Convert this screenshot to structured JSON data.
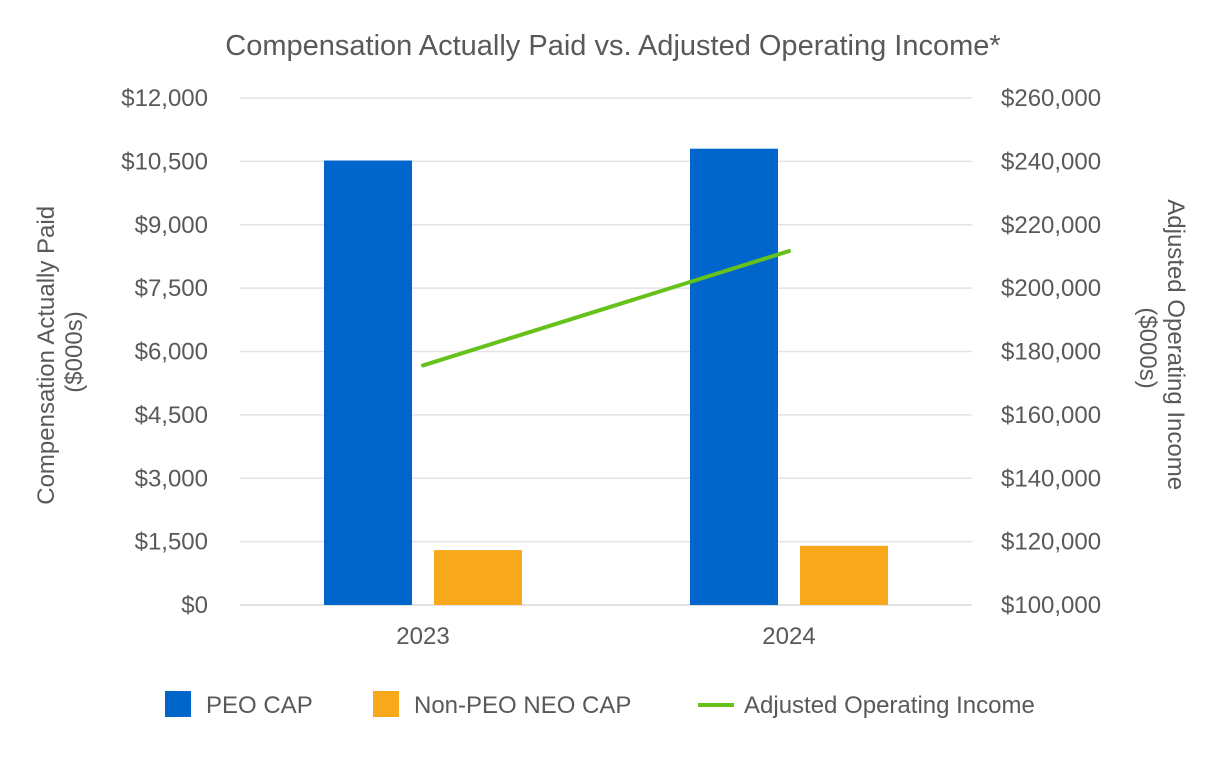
{
  "chart_data": {
    "type": "bar",
    "title": "Compensation Actually Paid vs. Adjusted Operating Income*",
    "categories": [
      "2023",
      "2024"
    ],
    "ylabel_left_lines": [
      "Compensation Actually Paid",
      "($000s)"
    ],
    "ylabel_right_lines": [
      "Adjusted Operating Income",
      "($000s)"
    ],
    "ylim_left": [
      0,
      12000
    ],
    "ylim_right": [
      100000,
      260000
    ],
    "yticks_left": [
      "$0",
      "$1,500",
      "$3,000",
      "$4,500",
      "$6,000",
      "$7,500",
      "$9,000",
      "$10,500",
      "$12,000"
    ],
    "yticks_right": [
      "$100,000",
      "$120,000",
      "$140,000",
      "$160,000",
      "$180,000",
      "$200,000",
      "$220,000",
      "$240,000",
      "$260,000"
    ],
    "grid": true,
    "legend_position": "bottom",
    "series": [
      {
        "name": "PEO CAP",
        "kind": "bar",
        "axis": "left",
        "color": "#0066CC",
        "values": [
          10520,
          10800
        ]
      },
      {
        "name": "Non-PEO NEO CAP",
        "kind": "bar",
        "axis": "left",
        "color": "#F7A81B",
        "values": [
          1300,
          1400
        ]
      },
      {
        "name": "Adjusted Operating Income",
        "kind": "line",
        "axis": "right",
        "color": "#66C21A",
        "values": [
          175600,
          211700
        ]
      }
    ]
  }
}
